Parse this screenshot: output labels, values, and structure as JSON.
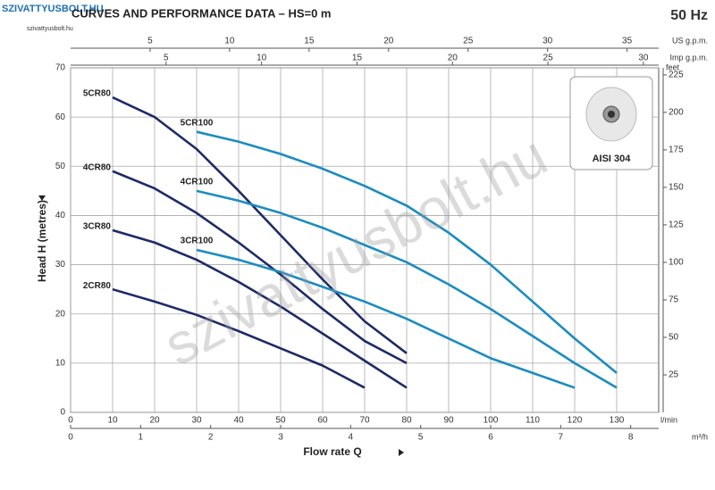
{
  "logo": {
    "title": "SZIVATTYUSBOLT.HU",
    "subtitle": "szivattyusbolt.hu"
  },
  "watermark": "szivattyusbolt.hu",
  "chart_data": {
    "type": "line",
    "title": "CURVES AND PERFORMANCE DATA  –  HS=0 m",
    "frequency": "50 Hz",
    "ylabel": "Head H (metres)",
    "xlabel": "Flow rate Q",
    "inset_label": "AISI 304",
    "xunit": "l/min",
    "xlim": [
      0,
      140
    ],
    "xticks": [
      0,
      10,
      20,
      30,
      40,
      50,
      60,
      70,
      80,
      90,
      100,
      110,
      120,
      130
    ],
    "ylim": [
      0,
      70
    ],
    "yticks": [
      0,
      10,
      20,
      30,
      40,
      50,
      60,
      70
    ],
    "grid": true,
    "y2unit": "feet",
    "y2lim": [
      0,
      229.7
    ],
    "y2ticks": [
      25,
      50,
      75,
      100,
      125,
      150,
      175,
      200,
      225
    ],
    "x2unit": "m³/h",
    "x2lim": [
      0,
      8.4
    ],
    "x2ticks": [
      0,
      1,
      2,
      3,
      4,
      5,
      6,
      7,
      8
    ],
    "x3unit": "US g.p.m.",
    "x3lim": [
      0,
      36.99
    ],
    "x3ticks": [
      5,
      10,
      15,
      20,
      25,
      30,
      35
    ],
    "x4unit": "Imp g.p.m.",
    "x4lim": [
      0,
      30.8
    ],
    "x4ticks": [
      5,
      10,
      15,
      20,
      25,
      30
    ],
    "series": [
      {
        "name": "2CR80",
        "color": "#1f2a66",
        "x": [
          10,
          20,
          30,
          40,
          50,
          60,
          70
        ],
        "values": [
          25,
          22.5,
          19.8,
          16.5,
          13,
          9.5,
          5
        ]
      },
      {
        "name": "3CR80",
        "color": "#1f2a66",
        "x": [
          10,
          20,
          30,
          40,
          50,
          60,
          70,
          80
        ],
        "values": [
          37,
          34.5,
          31,
          26.5,
          21.5,
          16,
          10.5,
          5
        ]
      },
      {
        "name": "4CR80",
        "color": "#1f2a66",
        "x": [
          10,
          20,
          30,
          40,
          50,
          60,
          70,
          80
        ],
        "values": [
          49,
          45.5,
          40.5,
          34.5,
          28,
          21,
          14.5,
          10
        ]
      },
      {
        "name": "5CR80",
        "color": "#1f2a66",
        "x": [
          10,
          20,
          30,
          40,
          50,
          60,
          70,
          80
        ],
        "values": [
          64,
          60,
          53.5,
          45,
          36,
          27,
          18.5,
          12
        ]
      },
      {
        "name": "3CR100",
        "color": "#1b8cc0",
        "x": [
          30,
          40,
          50,
          60,
          70,
          80,
          90,
          100,
          110,
          120
        ],
        "values": [
          33,
          31,
          28.5,
          25.5,
          22.5,
          19,
          15,
          11,
          8,
          5
        ]
      },
      {
        "name": "4CR100",
        "color": "#1b8cc0",
        "x": [
          30,
          40,
          50,
          60,
          70,
          80,
          90,
          100,
          110,
          120,
          130
        ],
        "values": [
          45,
          43,
          40.5,
          37.5,
          34,
          30.5,
          26,
          21,
          15.5,
          10,
          5
        ]
      },
      {
        "name": "5CR100",
        "color": "#1b8cc0",
        "x": [
          30,
          40,
          50,
          60,
          70,
          80,
          90,
          100,
          110,
          120,
          130
        ],
        "values": [
          57,
          55,
          52.5,
          49.5,
          46,
          42,
          36.5,
          30,
          22.5,
          15,
          8
        ]
      }
    ]
  }
}
